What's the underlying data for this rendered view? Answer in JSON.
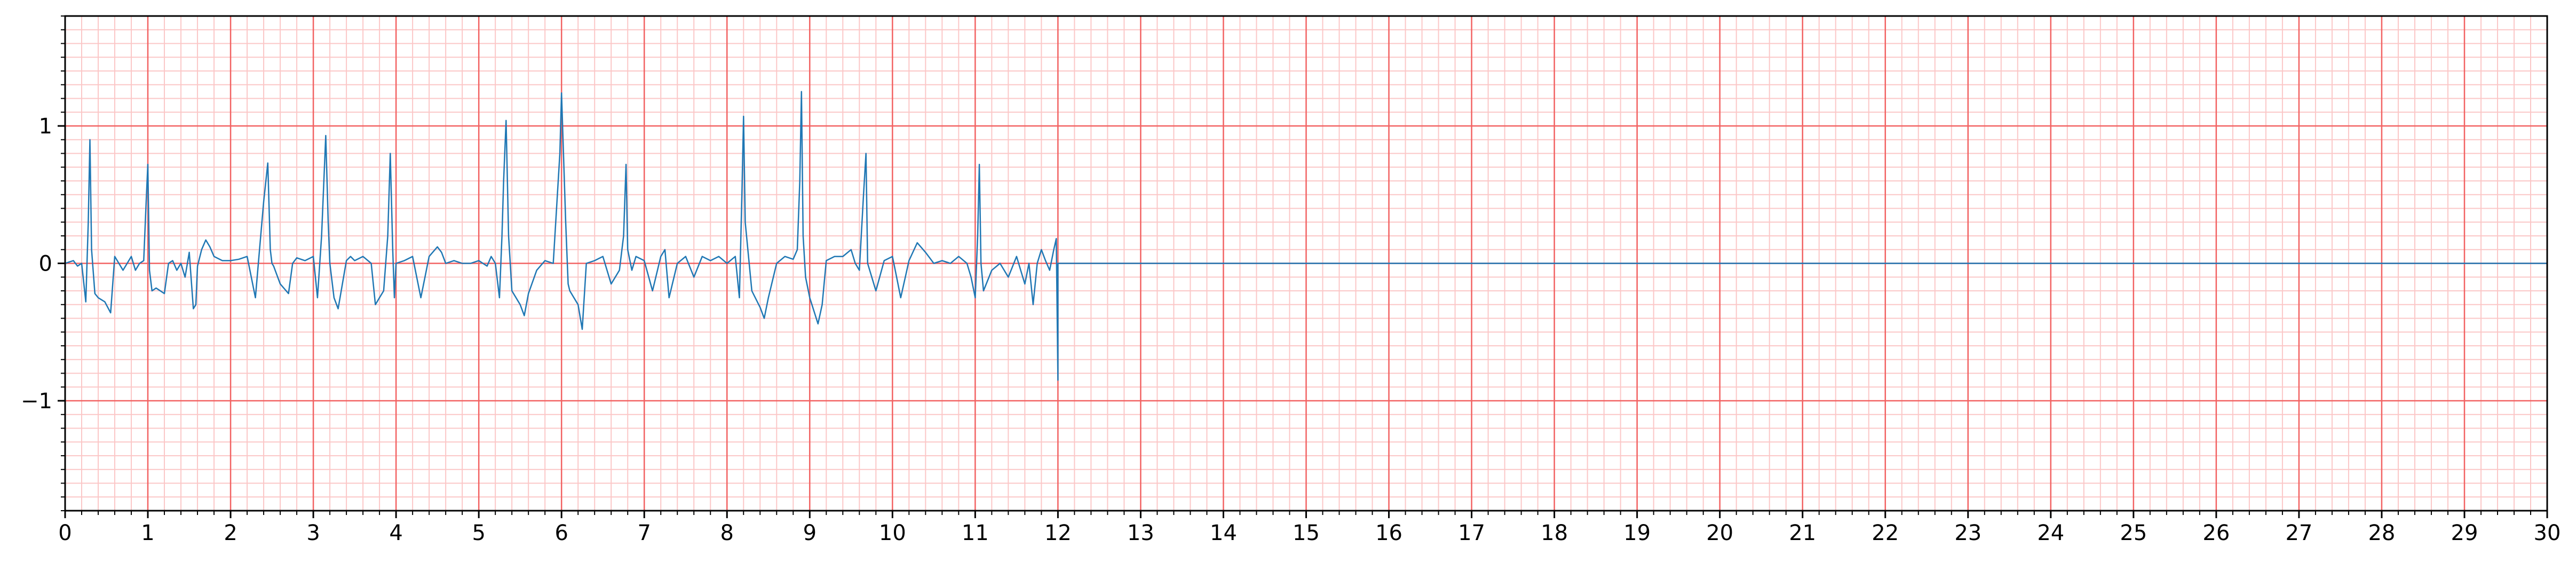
{
  "chart_data": {
    "type": "line",
    "title": "",
    "xlabel": "",
    "ylabel": "",
    "xlim": [
      0,
      30
    ],
    "ylim": [
      -1.8,
      1.8
    ],
    "x_ticks": [
      0,
      1,
      2,
      3,
      4,
      5,
      6,
      7,
      8,
      9,
      10,
      11,
      12,
      13,
      14,
      15,
      16,
      17,
      18,
      19,
      20,
      21,
      22,
      23,
      24,
      25,
      26,
      27,
      28,
      29,
      30
    ],
    "x_tick_labels": [
      "0",
      "1",
      "2",
      "3",
      "4",
      "5",
      "6",
      "7",
      "8",
      "9",
      "10",
      "11",
      "12",
      "13",
      "14",
      "15",
      "16",
      "17",
      "18",
      "19",
      "20",
      "21",
      "22",
      "23",
      "24",
      "25",
      "26",
      "27",
      "28",
      "29",
      "30"
    ],
    "y_ticks": [
      -1,
      0,
      1
    ],
    "y_tick_labels": [
      "−1",
      "0",
      "1"
    ],
    "grid": "ECG paper: major lines every 1 s and 1 mV, minor lines every 0.2 s and 0.1 mV",
    "legend": "none",
    "colors": {
      "signal": "#1f77b4",
      "grid_major": "#f26262",
      "grid_minor": "#fbc7c7",
      "axes": "#000000"
    },
    "series": [
      {
        "color": "#1f77b4",
        "x": [
          0,
          0.1,
          0.15,
          0.2,
          0.25,
          0.28,
          0.3,
          0.32,
          0.36,
          0.4,
          0.48,
          0.55,
          0.6,
          0.65,
          0.7,
          0.75,
          0.8,
          0.85,
          0.9,
          0.95,
          0.98,
          1.0,
          1.02,
          1.05,
          1.1,
          1.2,
          1.25,
          1.3,
          1.35,
          1.4,
          1.45,
          1.5,
          1.55,
          1.58,
          1.6,
          1.65,
          1.7,
          1.75,
          1.8,
          1.9,
          2.0,
          2.1,
          2.2,
          2.3,
          2.35,
          2.4,
          2.45,
          2.48,
          2.5,
          2.52,
          2.6,
          2.7,
          2.75,
          2.8,
          2.9,
          3.0,
          3.05,
          3.1,
          3.15,
          3.18,
          3.2,
          3.22,
          3.25,
          3.3,
          3.4,
          3.45,
          3.5,
          3.6,
          3.7,
          3.75,
          3.8,
          3.85,
          3.9,
          3.93,
          3.96,
          3.98,
          4.0,
          4.1,
          4.2,
          4.3,
          4.4,
          4.5,
          4.55,
          4.6,
          4.7,
          4.8,
          4.9,
          5.0,
          5.1,
          5.15,
          5.2,
          5.25,
          5.28,
          5.3,
          5.33,
          5.36,
          5.4,
          5.5,
          5.55,
          5.6,
          5.7,
          5.8,
          5.9,
          5.98,
          6.0,
          6.05,
          6.08,
          6.1,
          6.2,
          6.25,
          6.3,
          6.4,
          6.5,
          6.6,
          6.7,
          6.75,
          6.78,
          6.8,
          6.85,
          6.9,
          7.0,
          7.1,
          7.2,
          7.25,
          7.3,
          7.4,
          7.5,
          7.6,
          7.7,
          7.8,
          7.9,
          8.0,
          8.1,
          8.15,
          8.18,
          8.2,
          8.22,
          8.3,
          8.4,
          8.45,
          8.5,
          8.6,
          8.7,
          8.8,
          8.85,
          8.88,
          8.9,
          8.92,
          8.95,
          9.0,
          9.1,
          9.15,
          9.2,
          9.3,
          9.4,
          9.5,
          9.55,
          9.6,
          9.65,
          9.68,
          9.7,
          9.8,
          9.9,
          10.0,
          10.05,
          10.1,
          10.2,
          10.3,
          10.4,
          10.5,
          10.6,
          10.7,
          10.8,
          10.9,
          10.95,
          11.0,
          11.03,
          11.05,
          11.07,
          11.1,
          11.2,
          11.3,
          11.4,
          11.5,
          11.55,
          11.6,
          11.65,
          11.7,
          11.75,
          11.8,
          11.85,
          11.9,
          11.95,
          11.98,
          12.0,
          12.0,
          30.0
        ],
        "values": [
          0,
          0.02,
          -0.02,
          0.0,
          -0.28,
          0.3,
          0.9,
          0.1,
          -0.22,
          -0.25,
          -0.28,
          -0.36,
          0.05,
          0.0,
          -0.05,
          0.0,
          0.05,
          -0.05,
          0.0,
          0.02,
          0.45,
          0.72,
          -0.05,
          -0.2,
          -0.18,
          -0.22,
          0.0,
          0.02,
          -0.05,
          0.0,
          -0.1,
          0.08,
          -0.33,
          -0.3,
          -0.02,
          0.1,
          0.17,
          0.12,
          0.05,
          0.02,
          0.02,
          0.03,
          0.05,
          -0.25,
          0.1,
          0.45,
          0.73,
          0.1,
          0.0,
          -0.02,
          -0.15,
          -0.22,
          0.0,
          0.04,
          0.02,
          0.05,
          -0.25,
          0.2,
          0.93,
          0.3,
          0.0,
          -0.1,
          -0.25,
          -0.33,
          0.02,
          0.05,
          0.02,
          0.05,
          0.0,
          -0.3,
          -0.25,
          -0.2,
          0.2,
          0.8,
          0.1,
          -0.25,
          0.0,
          0.02,
          0.05,
          -0.25,
          0.05,
          0.12,
          0.08,
          0.0,
          0.02,
          0.0,
          0.0,
          0.02,
          -0.02,
          0.05,
          0.0,
          -0.25,
          0.2,
          0.6,
          1.04,
          0.2,
          -0.2,
          -0.3,
          -0.38,
          -0.22,
          -0.05,
          0.02,
          0.0,
          0.8,
          1.24,
          0.3,
          -0.15,
          -0.2,
          -0.3,
          -0.48,
          0.0,
          0.02,
          0.05,
          -0.15,
          -0.05,
          0.2,
          0.72,
          0.1,
          -0.05,
          0.05,
          0.02,
          -0.2,
          0.05,
          0.1,
          -0.25,
          0.0,
          0.05,
          -0.1,
          0.05,
          0.02,
          0.05,
          0.0,
          0.05,
          -0.25,
          0.5,
          1.07,
          0.3,
          -0.2,
          -0.32,
          -0.4,
          -0.25,
          0.0,
          0.05,
          0.03,
          0.1,
          0.6,
          1.25,
          0.2,
          -0.1,
          -0.25,
          -0.44,
          -0.3,
          0.02,
          0.05,
          0.05,
          0.1,
          0.0,
          -0.05,
          0.5,
          0.8,
          0.0,
          -0.2,
          0.02,
          0.05,
          -0.1,
          -0.25,
          0.02,
          0.15,
          0.08,
          0.0,
          0.02,
          0.0,
          0.05,
          0.0,
          -0.1,
          -0.25,
          0.2,
          0.72,
          0.0,
          -0.2,
          -0.05,
          0.0,
          -0.1,
          0.05,
          -0.05,
          -0.15,
          0.0,
          -0.3,
          0.0,
          0.1,
          0.02,
          -0.05,
          0.1,
          0.18,
          -0.85,
          0.0,
          0.0
        ]
      }
    ]
  }
}
